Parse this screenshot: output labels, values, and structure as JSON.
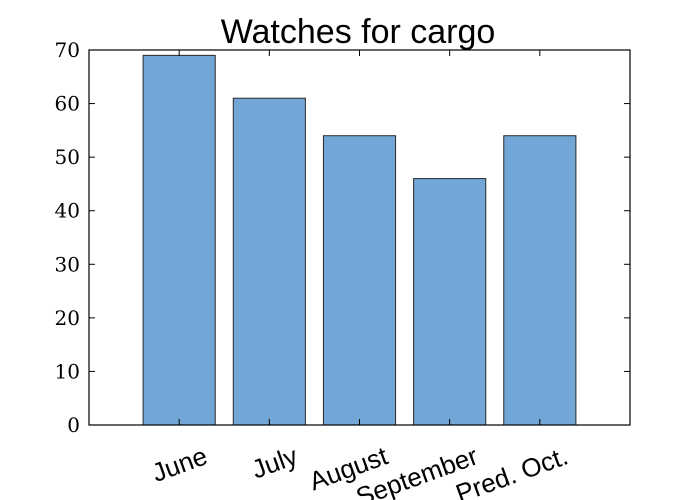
{
  "chart_data": {
    "type": "bar",
    "title": "Watches for cargo",
    "xlabel": "",
    "ylabel": "",
    "categories": [
      "June",
      "July",
      "August",
      "September",
      "Pred. Oct."
    ],
    "values": [
      69,
      61,
      54,
      46,
      54
    ],
    "ylim": [
      0,
      70
    ],
    "yticks": [
      "0",
      "10",
      "20",
      "30",
      "40",
      "50",
      "60",
      "70"
    ],
    "bar_color": "#72a6d6",
    "edge_color": "#2a2a2a",
    "grid": false,
    "x_tick_rotation_deg": -20
  }
}
